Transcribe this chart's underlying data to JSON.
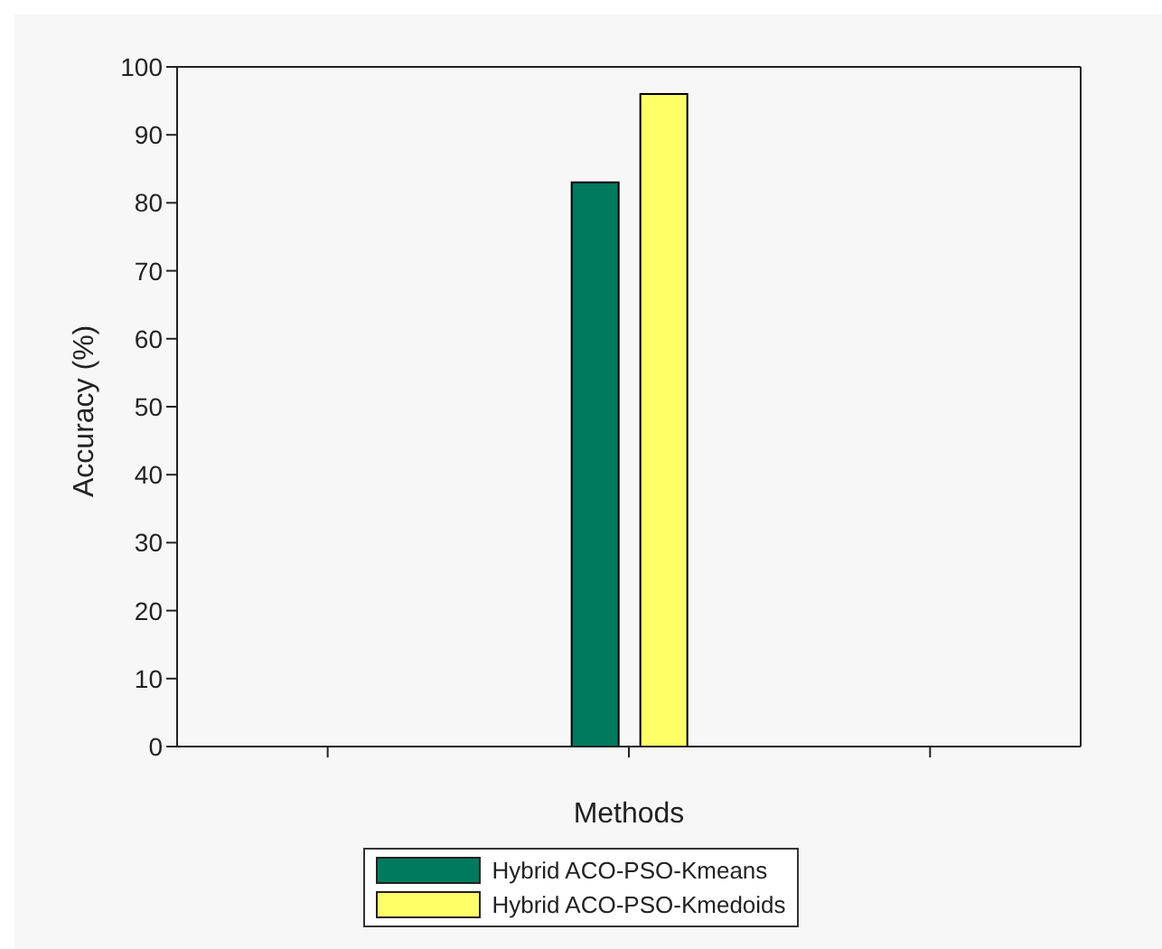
{
  "chart_data": {
    "type": "bar",
    "xlabel": "Methods",
    "ylabel": "Accuracy (%)",
    "categories": [
      null,
      null,
      null
    ],
    "series": [
      {
        "name": "Hybrid ACO-PSO-Kmeans",
        "color": "#007a5e",
        "values": [
          0,
          83,
          0
        ]
      },
      {
        "name": "Hybrid ACO-PSO-Kmedoids",
        "color": "#ffff66",
        "values": [
          0,
          96,
          0
        ]
      }
    ],
    "ylim": [
      0,
      100
    ],
    "yticks": [
      0,
      10,
      20,
      30,
      40,
      50,
      60,
      70,
      80,
      90,
      100
    ],
    "grid": false,
    "legend": "bottom",
    "tick_labels": "y"
  }
}
